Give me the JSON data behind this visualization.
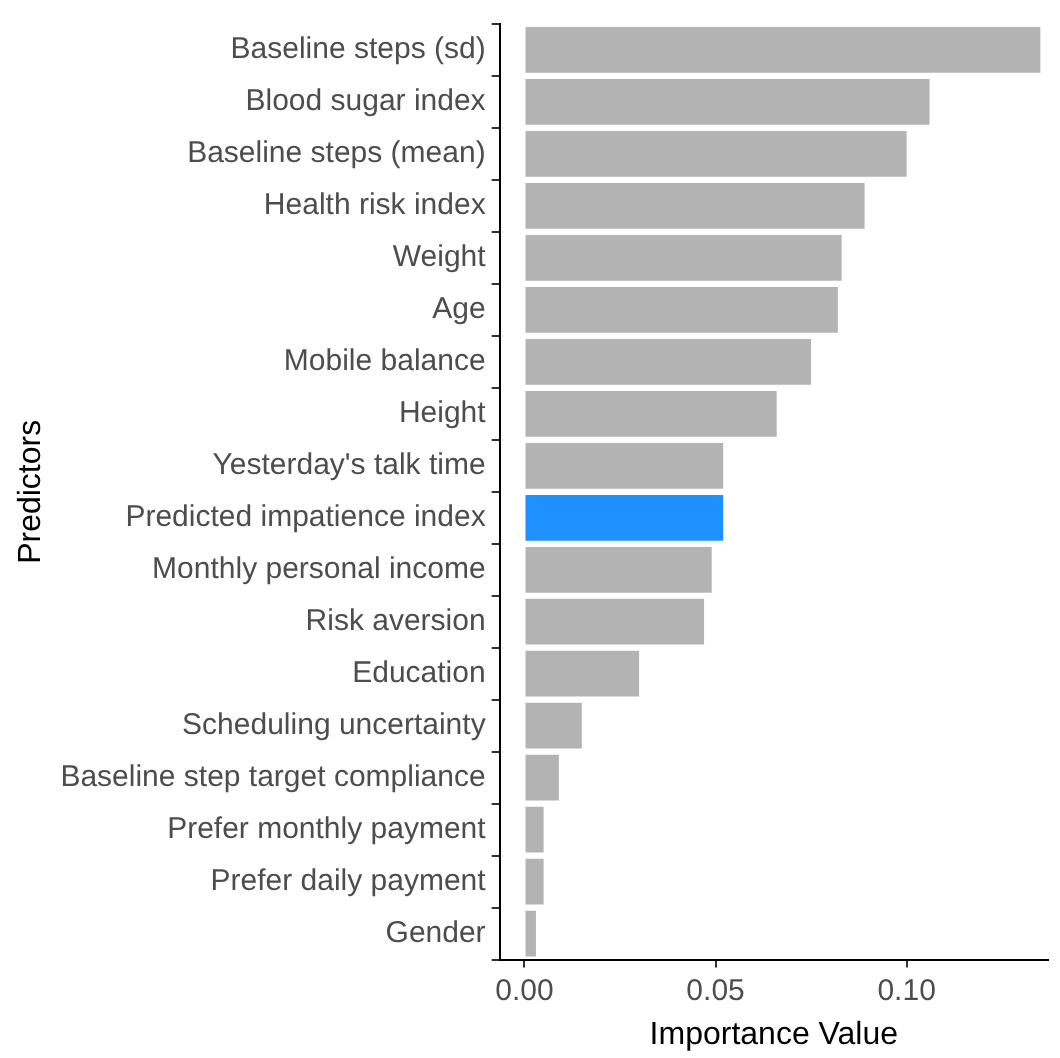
{
  "chart_data": {
    "type": "bar",
    "orientation": "horizontal",
    "xlabel": "Importance Value",
    "ylabel": "Predictors",
    "categories": [
      "Baseline steps (sd)",
      "Blood sugar index",
      "Baseline steps (mean)",
      "Health risk index",
      "Weight",
      "Age",
      "Mobile balance",
      "Height",
      "Yesterday's talk time",
      "Predicted impatience index",
      "Monthly personal income",
      "Risk aversion",
      "Education",
      "Scheduling uncertainty",
      "Baseline step target compliance",
      "Prefer monthly payment",
      "Prefer daily payment",
      "Gender"
    ],
    "values": [
      0.135,
      0.106,
      0.1,
      0.089,
      0.083,
      0.082,
      0.075,
      0.066,
      0.052,
      0.052,
      0.049,
      0.047,
      0.03,
      0.015,
      0.009,
      0.005,
      0.005,
      0.003
    ],
    "colors": [
      "#b3b3b3",
      "#b3b3b3",
      "#b3b3b3",
      "#b3b3b3",
      "#b3b3b3",
      "#b3b3b3",
      "#b3b3b3",
      "#b3b3b3",
      "#b3b3b3",
      "#1e90ff",
      "#b3b3b3",
      "#b3b3b3",
      "#b3b3b3",
      "#b3b3b3",
      "#b3b3b3",
      "#b3b3b3",
      "#b3b3b3",
      "#b3b3b3"
    ],
    "xlim": [
      -0.0065,
      0.137
    ],
    "xticks": [
      {
        "value": 0,
        "label": "0.00"
      },
      {
        "value": 0.05,
        "label": "0.05"
      },
      {
        "value": 0.1,
        "label": "0.10"
      }
    ],
    "grid": false,
    "legend": false
  }
}
